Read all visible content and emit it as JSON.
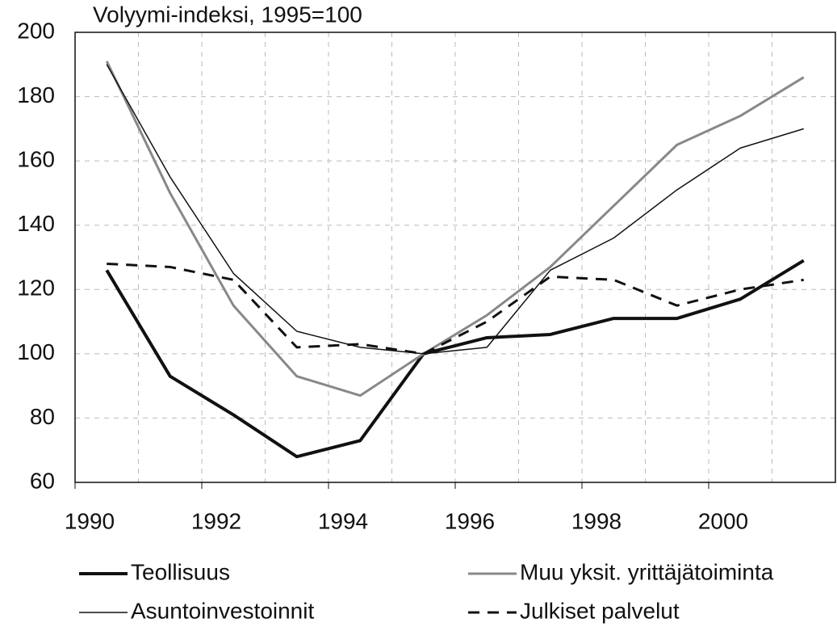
{
  "chart_data": {
    "type": "line",
    "y_label": "Volyymi-indeksi, 1995=100",
    "x": [
      1990.5,
      1991.5,
      1992.5,
      1993.5,
      1994.5,
      1995.5,
      1996.5,
      1997.5,
      1998.5,
      1999.5,
      2000.5,
      2001.5
    ],
    "xlim": [
      1990,
      2002
    ],
    "xticks": [
      1990,
      1992,
      1994,
      1996,
      1998,
      2000
    ],
    "ylim": [
      60,
      200
    ],
    "yticks": [
      60,
      80,
      100,
      120,
      140,
      160,
      180,
      200
    ],
    "grid": true,
    "series": [
      {
        "name": "Teollisuus",
        "color": "#111111",
        "width": 4,
        "dash": false,
        "values": [
          126,
          93,
          81,
          68,
          73,
          100,
          105,
          106,
          111,
          111,
          117,
          129
        ]
      },
      {
        "name": "Muu yksit. yrittäjätoiminta",
        "color": "#888888",
        "width": 3,
        "dash": false,
        "values": [
          191,
          150,
          115,
          93,
          87,
          100,
          112,
          127,
          146,
          165,
          174,
          186
        ]
      },
      {
        "name": "Asuntoinvestoinnit",
        "color": "#111111",
        "width": 1.5,
        "dash": false,
        "values": [
          190,
          155,
          125,
          107,
          102,
          100,
          102,
          126,
          136,
          151,
          164,
          170
        ]
      },
      {
        "name": "Julkiset palvelut",
        "color": "#111111",
        "width": 3,
        "dash": true,
        "values": [
          128,
          127,
          123,
          102,
          103,
          100,
          110,
          124,
          123,
          115,
          120,
          123
        ]
      }
    ]
  }
}
